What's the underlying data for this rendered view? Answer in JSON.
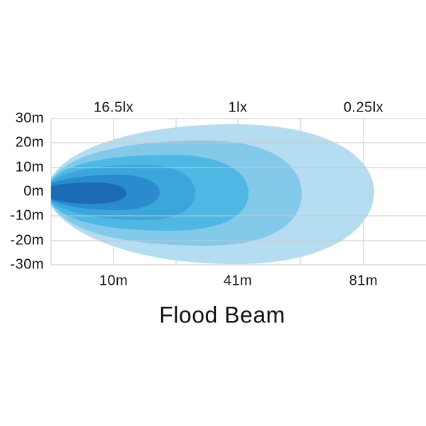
{
  "title": "Flood Beam",
  "y_axis": {
    "labels": [
      "30m",
      "20m",
      "10m",
      "0m",
      "-10m",
      "-20m",
      "-30m"
    ]
  },
  "x_axis": {
    "labels": [
      "10m",
      "41m",
      "81m"
    ]
  },
  "lux_labels": [
    "16.5lx",
    "1lx",
    "0.25lx"
  ]
}
